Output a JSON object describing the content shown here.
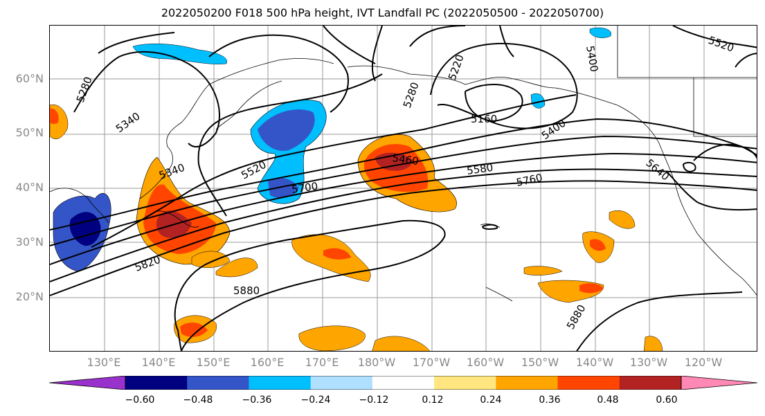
{
  "title": "2022050200 F018 500 hPa height, IVT Landfall PC (2022050500 - 2022050700)",
  "lat_labels": [
    "60°N",
    "50°N",
    "40°N",
    "30°N",
    "20°N"
  ],
  "lon_labels": [
    "130°E",
    "140°E",
    "150°E",
    "160°E",
    "170°E",
    "180°W",
    "170°W",
    "160°W",
    "150°W",
    "140°W",
    "130°W",
    "120°W"
  ],
  "contour_labels": [
    "5280",
    "5340",
    "5520",
    "5340",
    "5700",
    "5820",
    "5880",
    "5460",
    "5580",
    "5760",
    "5160",
    "5280",
    "5220",
    "5400",
    "5640",
    "5880",
    "5520",
    "5400"
  ],
  "colorbar": {
    "ticks": [
      "−0.60",
      "−0.48",
      "−0.36",
      "−0.24",
      "−0.12",
      "0.12",
      "0.24",
      "0.36",
      "0.48",
      "0.60"
    ],
    "colors": [
      "#9932cc",
      "#000080",
      "#3455c8",
      "#00bfff",
      "#b0e0ff",
      "#ffffff",
      "#ffe680",
      "#ffa500",
      "#ff4500",
      "#b22222",
      "#ff88b4"
    ]
  },
  "colors": {
    "contour": "#000000",
    "grid": "#999999",
    "axis_label": "#888888"
  }
}
